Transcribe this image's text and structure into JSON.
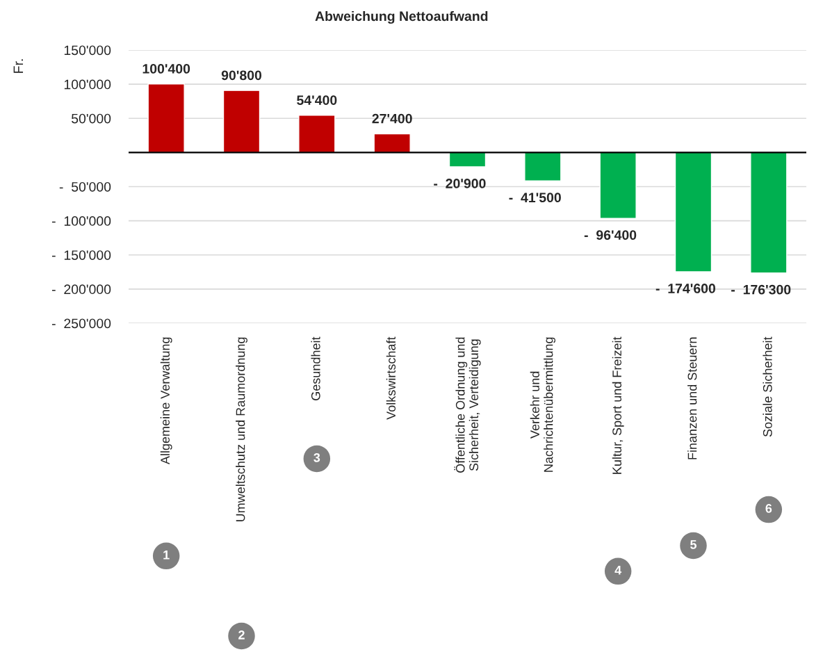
{
  "chart_data": {
    "type": "bar",
    "title": "Abweichung Nettoaufwand",
    "ylabel": "Fr.",
    "categories": [
      "Allgemeine Verwaltung",
      "Umweltschutz und Raumordnung",
      "Gesundheit",
      "Volkswirtschaft",
      "Öffentliche Ordnung und\nSicherheit, Verteidigung",
      "Verkehr und\nNachrichtenübermittlung",
      "Kultur, Sport und Freizeit",
      "Finanzen und Steuern",
      "Soziale Sicherheit"
    ],
    "values": [
      100400,
      90800,
      54400,
      27400,
      -20900,
      -41500,
      -96400,
      -174600,
      -176300
    ],
    "value_labels": [
      "100'400",
      "90'800",
      "54'400",
      "27'400",
      "-  20'900",
      "-  41'500",
      "-  96'400",
      "-  174'600",
      "-  176'300"
    ],
    "colors": [
      "#c00000",
      "#c00000",
      "#c00000",
      "#c00000",
      "#00b050",
      "#00b050",
      "#00b050",
      "#00b050",
      "#00b050"
    ],
    "ylim": [
      -250000,
      150000
    ],
    "yticks": [
      {
        "value": -250000,
        "label": "-  250'000"
      },
      {
        "value": -200000,
        "label": "-  200'000"
      },
      {
        "value": -150000,
        "label": "-  150'000"
      },
      {
        "value": -100000,
        "label": "-  100'000"
      },
      {
        "value": -50000,
        "label": "-  50'000"
      },
      {
        "value": 0,
        "label": null
      },
      {
        "value": 50000,
        "label": "50'000"
      },
      {
        "value": 100000,
        "label": "100'000"
      },
      {
        "value": 150000,
        "label": "150'000"
      }
    ],
    "ref_lines": [
      {
        "axis": "y",
        "value": 0,
        "color": "#000000"
      }
    ],
    "grid": "y",
    "legend": false,
    "annotations": [
      "1",
      "2",
      "3",
      "4",
      "5",
      "6"
    ]
  }
}
